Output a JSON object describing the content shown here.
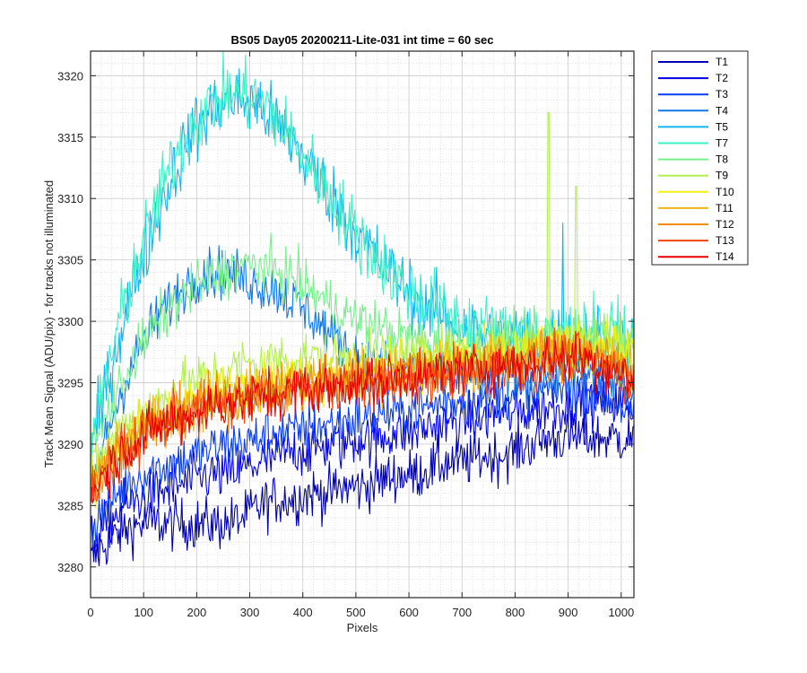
{
  "chart_data": {
    "type": "line",
    "title": "BS05 Day05 20200211-Lite-031 int time = 60 sec",
    "xlabel": "Pixels",
    "ylabel": "Track Mean Signal (ADU/pix) - for tracks not illuminated",
    "xlim": [
      0,
      1024
    ],
    "ylim": [
      3277.5,
      3322
    ],
    "xticks": [
      0,
      100,
      200,
      300,
      400,
      500,
      600,
      700,
      800,
      900,
      1000
    ],
    "yticks": [
      3280,
      3285,
      3290,
      3295,
      3300,
      3305,
      3310,
      3315,
      3320
    ],
    "grid": "major and minor",
    "legend_position": "outside-right",
    "x_step": 32,
    "series": [
      {
        "name": "T1",
        "color": "#0000b4",
        "noise": 3.0,
        "values": [
          3280.5,
          3282.0,
          3283.0,
          3283.5,
          3283.5,
          3283.5,
          3283.5,
          3283.5,
          3283.5,
          3284.0,
          3285.0,
          3285.5,
          3285.5,
          3286.0,
          3286.0,
          3286.5,
          3286.5,
          3287.0,
          3287.5,
          3287.5,
          3288.0,
          3288.5,
          3288.5,
          3289.0,
          3289.0,
          3289.5,
          3290.0,
          3290.5,
          3290.5,
          3290.5,
          3290.5,
          3290.5,
          3290.5
        ]
      },
      {
        "name": "T2",
        "color": "#0000e6",
        "noise": 3.0,
        "values": [
          3282.0,
          3283.5,
          3285.0,
          3285.5,
          3286.0,
          3286.5,
          3287.0,
          3287.5,
          3287.5,
          3288.0,
          3288.5,
          3289.0,
          3289.5,
          3289.5,
          3290.0,
          3290.0,
          3290.5,
          3290.5,
          3291.0,
          3291.0,
          3291.5,
          3291.5,
          3292.0,
          3292.0,
          3292.5,
          3292.5,
          3293.0,
          3293.0,
          3293.0,
          3293.5,
          3293.5,
          3293.5,
          3293.0
        ]
      },
      {
        "name": "T3",
        "color": "#0a3cf0",
        "noise": 3.0,
        "values": [
          3283.0,
          3285.0,
          3286.5,
          3287.5,
          3288.0,
          3288.5,
          3289.0,
          3289.5,
          3290.0,
          3290.0,
          3290.5,
          3291.0,
          3291.0,
          3291.5,
          3291.5,
          3292.0,
          3292.0,
          3292.5,
          3292.5,
          3293.0,
          3293.0,
          3293.5,
          3293.5,
          3293.5,
          3294.0,
          3294.0,
          3294.0,
          3294.5,
          3294.5,
          3294.5,
          3294.0,
          3293.5,
          3292.0
        ]
      },
      {
        "name": "T4",
        "color": "#1478e6",
        "noise": 3.0,
        "values": [
          3286.0,
          3291.0,
          3295.0,
          3298.0,
          3300.5,
          3302.0,
          3303.5,
          3304.0,
          3304.0,
          3303.5,
          3303.0,
          3302.5,
          3301.5,
          3300.5,
          3299.0,
          3298.0,
          3297.0,
          3296.5,
          3296.0,
          3296.0,
          3295.5,
          3295.5,
          3295.5,
          3295.5,
          3295.5,
          3295.5,
          3295.5,
          3295.5,
          3295.5,
          3295.5,
          3295.5,
          3295.0,
          3294.5
        ]
      },
      {
        "name": "T5",
        "color": "#14b4f0",
        "noise": 4.0,
        "values": [
          3289.0,
          3295.0,
          3300.5,
          3305.0,
          3309.0,
          3312.5,
          3315.5,
          3317.0,
          3318.0,
          3318.0,
          3317.5,
          3316.0,
          3314.5,
          3312.5,
          3310.5,
          3308.5,
          3306.5,
          3305.0,
          3303.5,
          3302.0,
          3301.0,
          3300.0,
          3299.5,
          3299.0,
          3298.5,
          3298.5,
          3298.5,
          3298.5,
          3298.5,
          3298.5,
          3298.5,
          3298.5,
          3297.5
        ]
      },
      {
        "name": "T7",
        "color": "#3cf0c8",
        "noise": 4.0,
        "values": [
          3290.0,
          3296.0,
          3301.5,
          3306.0,
          3310.0,
          3313.5,
          3316.0,
          3317.5,
          3318.5,
          3318.5,
          3318.0,
          3316.5,
          3314.5,
          3312.5,
          3310.5,
          3308.5,
          3306.5,
          3305.0,
          3303.5,
          3302.5,
          3301.5,
          3300.5,
          3300.0,
          3299.5,
          3299.0,
          3299.0,
          3299.0,
          3299.0,
          3299.0,
          3299.0,
          3299.0,
          3299.0,
          3298.0
        ]
      },
      {
        "name": "T8",
        "color": "#78f08c",
        "noise": 3.0,
        "values": [
          3289.0,
          3292.5,
          3295.5,
          3298.0,
          3300.0,
          3301.5,
          3302.5,
          3303.5,
          3304.0,
          3304.5,
          3304.5,
          3304.0,
          3303.5,
          3302.5,
          3301.5,
          3300.5,
          3300.0,
          3299.5,
          3299.0,
          3298.5,
          3298.0,
          3298.0,
          3298.0,
          3298.0,
          3298.5,
          3298.5,
          3298.5,
          3299.0,
          3299.0,
          3299.0,
          3299.0,
          3299.0,
          3298.5
        ]
      },
      {
        "name": "T9",
        "color": "#b4f050",
        "noise": 3.0,
        "values": [
          3287.5,
          3290.0,
          3291.5,
          3292.5,
          3293.5,
          3294.5,
          3295.0,
          3295.5,
          3296.0,
          3296.5,
          3296.5,
          3297.0,
          3297.0,
          3297.0,
          3297.0,
          3297.0,
          3297.0,
          3297.0,
          3297.0,
          3297.0,
          3297.5,
          3297.5,
          3297.5,
          3297.5,
          3298.0,
          3298.0,
          3298.0,
          3298.5,
          3298.5,
          3298.5,
          3298.5,
          3298.5,
          3298.0
        ]
      },
      {
        "name": "T10",
        "color": "#f0f014",
        "noise": 3.0,
        "values": [
          3287.0,
          3289.0,
          3290.5,
          3291.5,
          3292.5,
          3293.0,
          3293.5,
          3294.0,
          3294.5,
          3294.5,
          3295.0,
          3295.0,
          3295.5,
          3295.5,
          3295.5,
          3296.0,
          3296.0,
          3296.0,
          3296.5,
          3296.5,
          3296.5,
          3297.0,
          3297.0,
          3297.0,
          3297.5,
          3297.5,
          3297.5,
          3298.0,
          3298.0,
          3298.0,
          3298.0,
          3298.0,
          3297.0
        ]
      },
      {
        "name": "T11",
        "color": "#f0b414",
        "noise": 3.0,
        "values": [
          3286.5,
          3288.5,
          3290.0,
          3291.0,
          3292.0,
          3292.5,
          3293.0,
          3293.5,
          3294.0,
          3294.0,
          3294.5,
          3294.5,
          3295.0,
          3295.0,
          3295.0,
          3295.5,
          3295.5,
          3295.5,
          3296.0,
          3296.0,
          3296.0,
          3296.5,
          3296.5,
          3296.5,
          3297.0,
          3297.0,
          3297.0,
          3297.5,
          3297.5,
          3297.5,
          3297.5,
          3297.0,
          3296.5
        ]
      },
      {
        "name": "T12",
        "color": "#f08c14",
        "noise": 3.0,
        "values": [
          3286.5,
          3288.5,
          3290.0,
          3291.0,
          3291.5,
          3292.5,
          3293.0,
          3293.5,
          3293.5,
          3294.0,
          3294.5,
          3294.5,
          3294.5,
          3295.0,
          3295.0,
          3295.0,
          3295.5,
          3295.5,
          3295.5,
          3296.0,
          3296.0,
          3296.0,
          3296.5,
          3296.5,
          3296.5,
          3297.0,
          3297.0,
          3297.0,
          3297.5,
          3297.5,
          3297.0,
          3296.5,
          3296.0
        ]
      },
      {
        "name": "T13",
        "color": "#f0460a",
        "noise": 3.0,
        "values": [
          3286.0,
          3288.0,
          3289.5,
          3290.5,
          3291.5,
          3292.0,
          3292.5,
          3293.0,
          3293.5,
          3293.5,
          3294.0,
          3294.0,
          3294.5,
          3294.5,
          3294.5,
          3295.0,
          3295.0,
          3295.0,
          3295.5,
          3295.5,
          3295.5,
          3296.0,
          3296.0,
          3296.0,
          3296.5,
          3296.5,
          3296.5,
          3297.0,
          3297.0,
          3297.0,
          3296.5,
          3296.0,
          3295.0
        ]
      },
      {
        "name": "T14",
        "color": "#e60000",
        "noise": 3.0,
        "values": [
          3286.0,
          3288.0,
          3289.5,
          3290.5,
          3291.5,
          3292.0,
          3292.5,
          3293.0,
          3293.5,
          3293.5,
          3294.0,
          3294.0,
          3294.5,
          3294.5,
          3294.5,
          3295.0,
          3295.0,
          3295.0,
          3295.5,
          3295.5,
          3295.5,
          3296.0,
          3296.0,
          3296.0,
          3296.5,
          3296.5,
          3296.5,
          3297.0,
          3297.0,
          3297.0,
          3296.5,
          3296.0,
          3295.0
        ]
      }
    ],
    "annotations": [
      {
        "series": "T9",
        "x": 863,
        "y": 3317.0,
        "note": "spike"
      },
      {
        "series": "T9",
        "x": 915,
        "y": 3311.0,
        "note": "spike"
      },
      {
        "series": "T5",
        "x": 890,
        "y": 3308.0,
        "note": "spike"
      }
    ]
  }
}
